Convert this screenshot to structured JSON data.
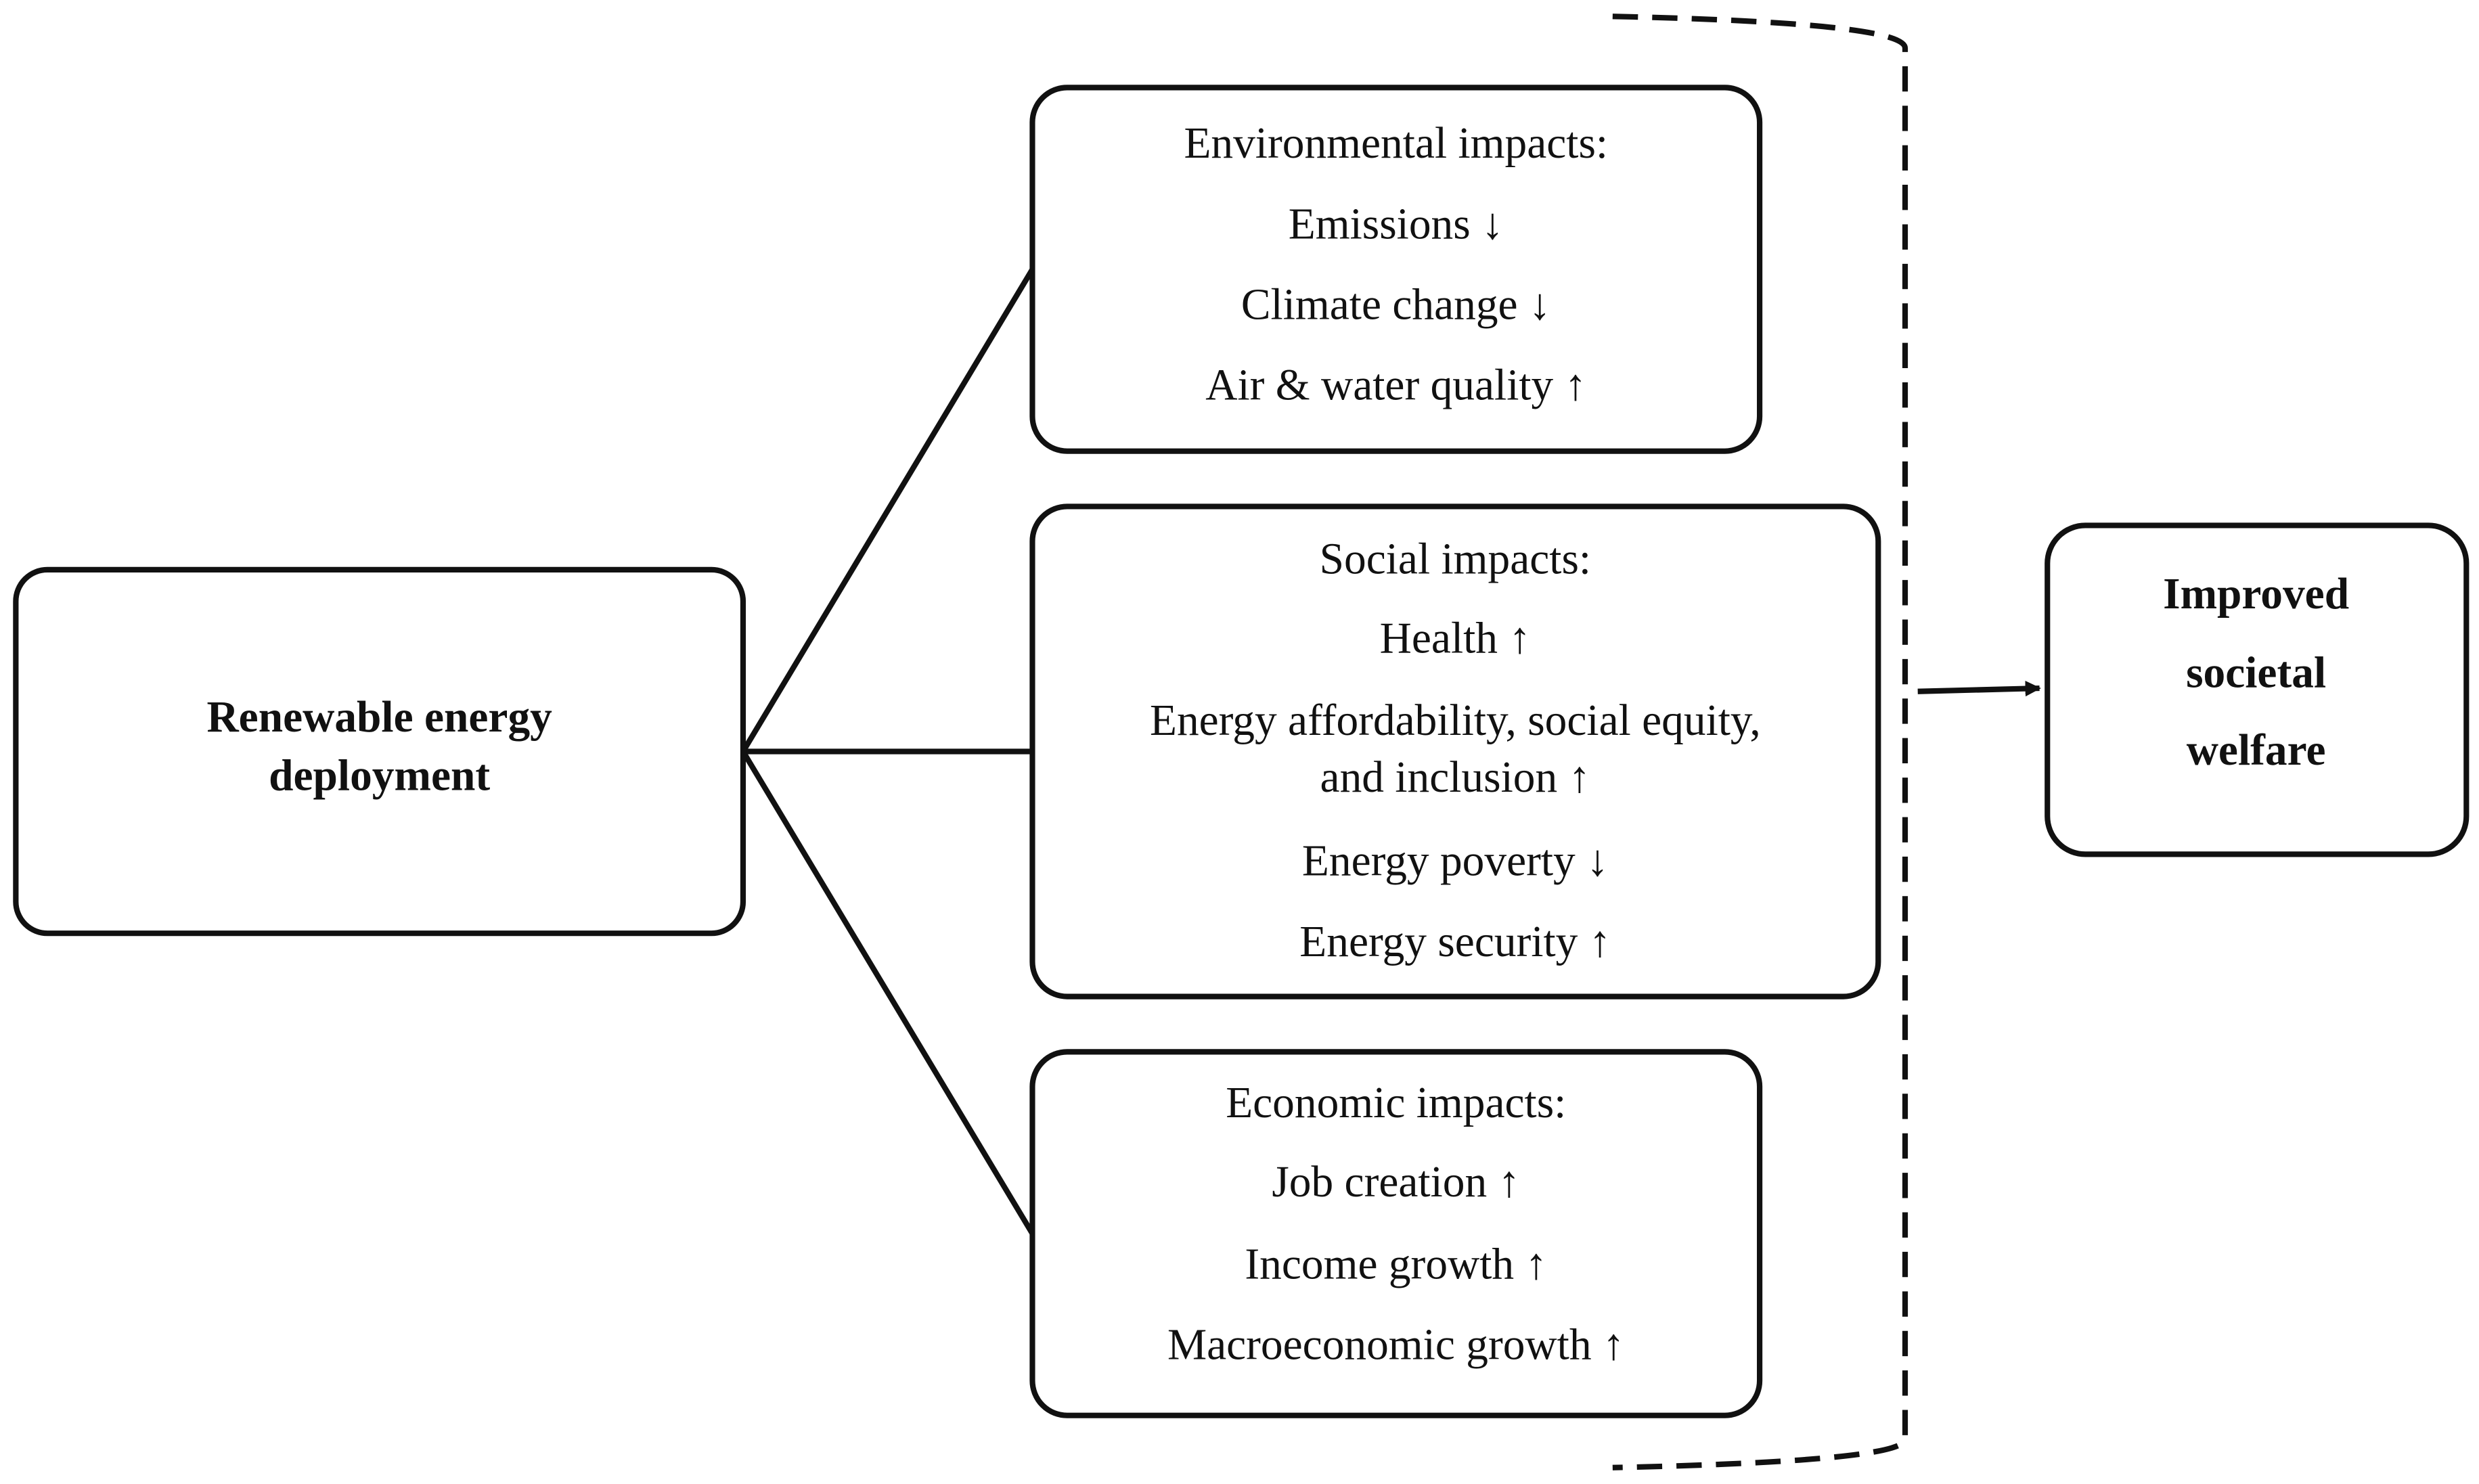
{
  "source": {
    "label": [
      "Renewable energy",
      "deployment"
    ]
  },
  "groups": [
    {
      "title": "Environmental impacts:",
      "items": [
        [
          "Emissions ↓"
        ],
        [
          "Climate change ↓"
        ],
        [
          "Air & water quality ↑"
        ]
      ]
    },
    {
      "title": "Social impacts:",
      "items": [
        [
          "Health ↑"
        ],
        [
          "Energy affordability, social equity,",
          "and inclusion ↑"
        ],
        [
          "Energy poverty ↓"
        ],
        [
          "Energy security ↑"
        ]
      ]
    },
    {
      "title": "Economic impacts:",
      "items": [
        [
          "Job creation ↑"
        ],
        [
          "Income growth ↑"
        ],
        [
          "Macroeconomic growth ↑"
        ]
      ]
    }
  ],
  "target": {
    "label": [
      "Improved",
      "societal",
      "welfare"
    ]
  }
}
